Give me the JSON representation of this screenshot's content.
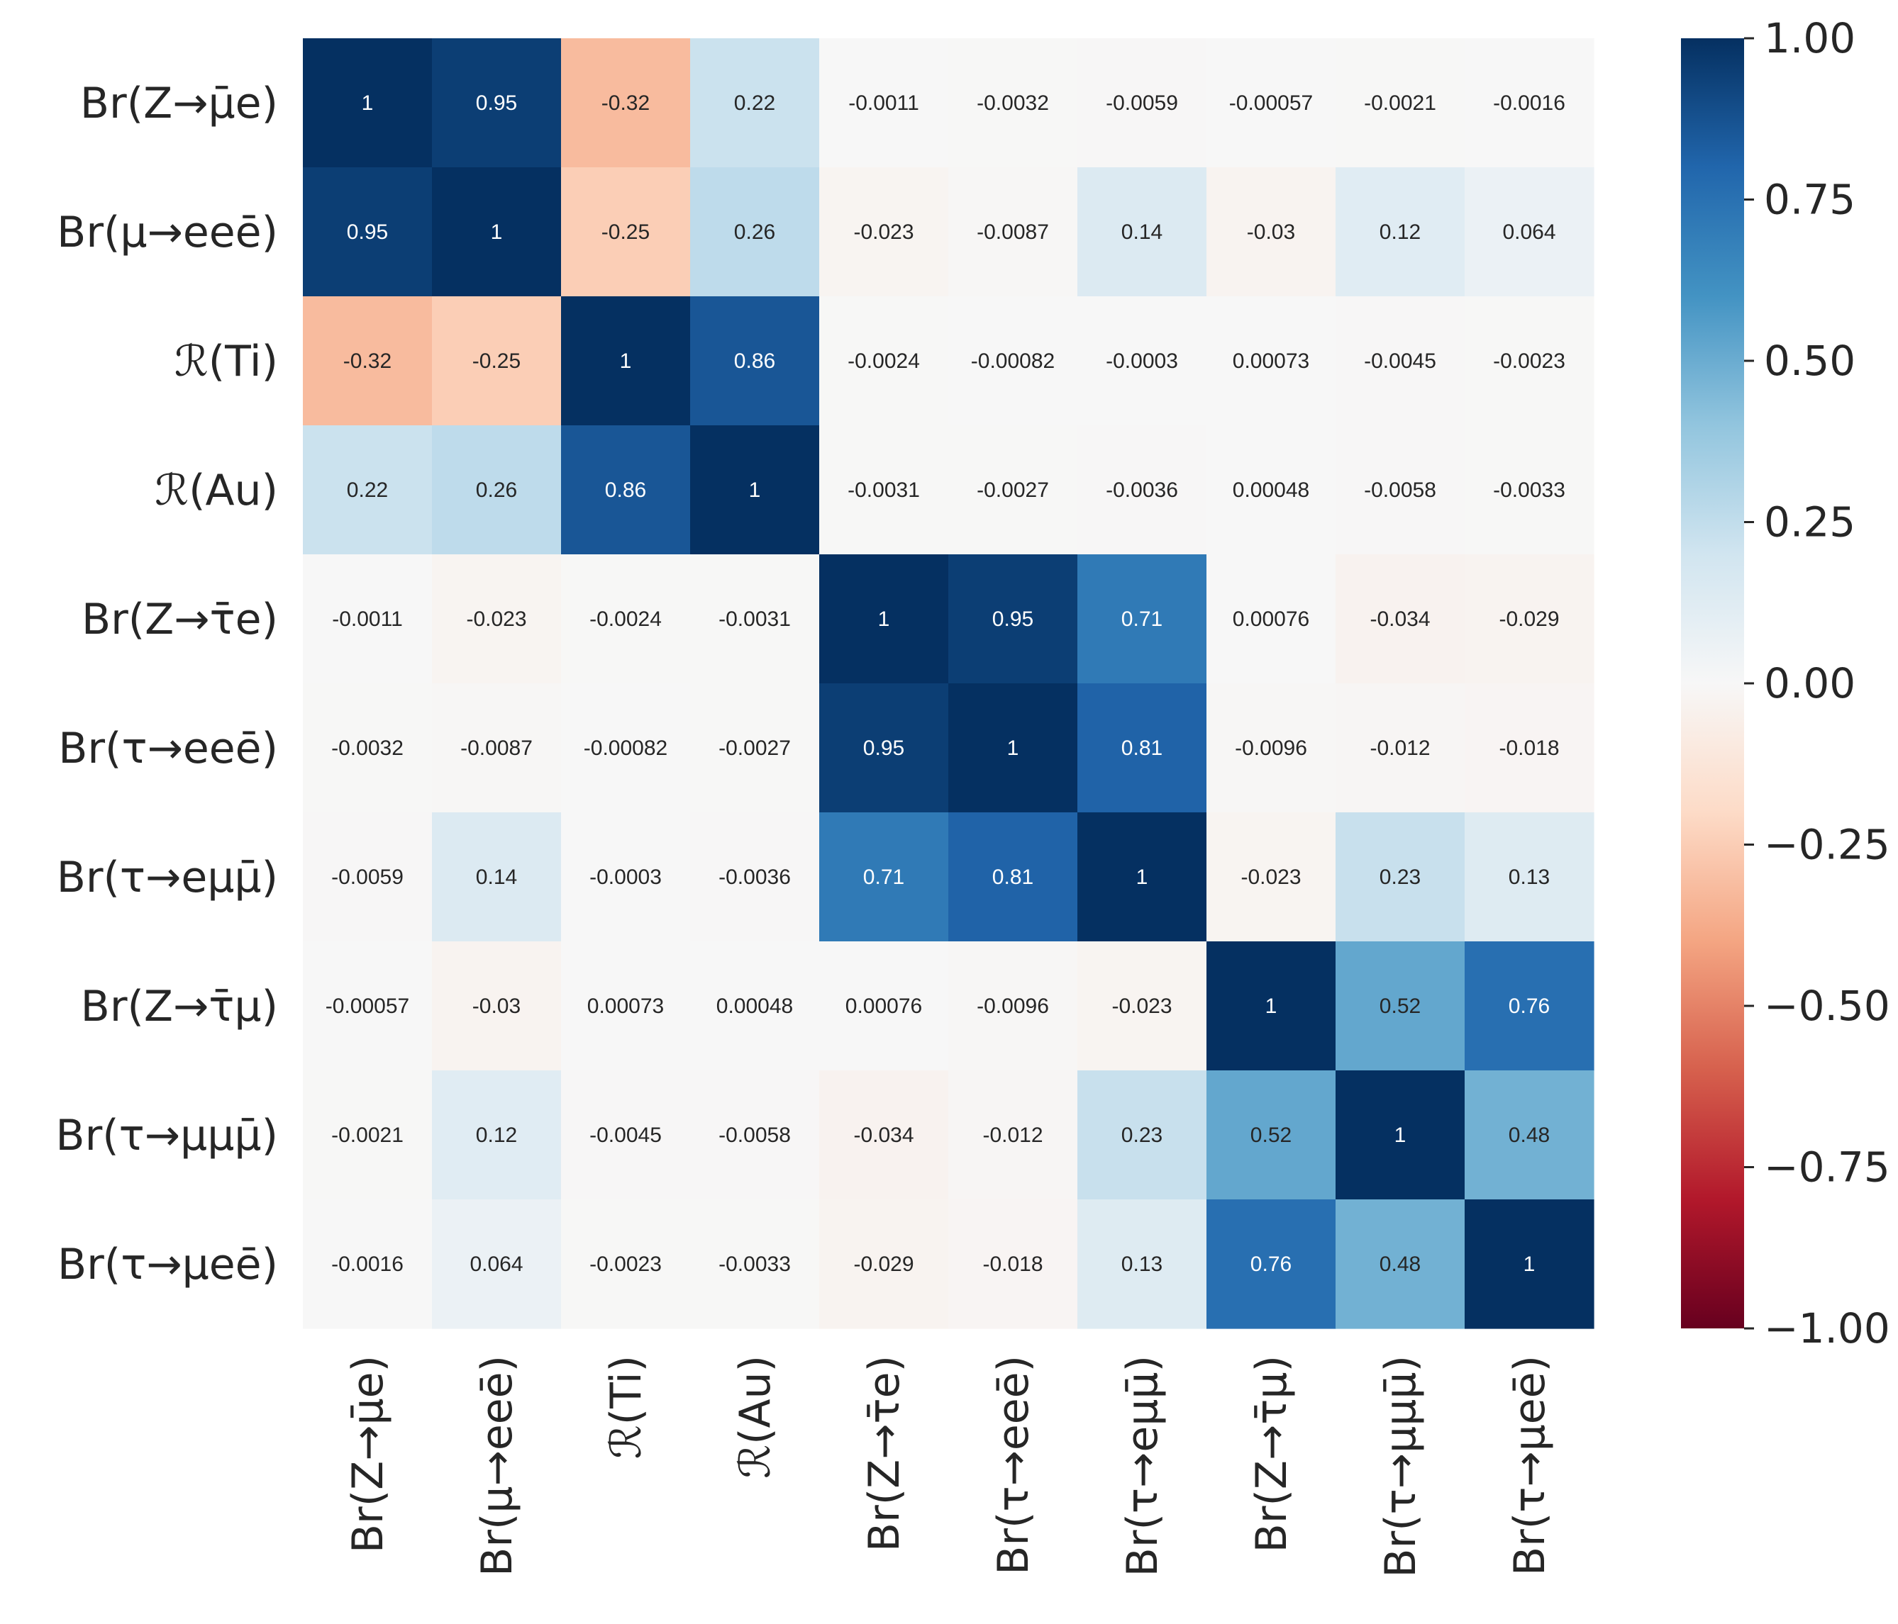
{
  "chart_data": {
    "type": "heatmap",
    "title": "",
    "xlabel": "",
    "ylabel": "",
    "row_labels": [
      "Br(Z→μ̄e)",
      "Br(μ→eeē)",
      "ℛ(Ti)",
      "ℛ(Au)",
      "Br(Z→τ̄e)",
      "Br(τ→eeē)",
      "Br(τ→eμμ̄)",
      "Br(Z→τ̄μ)",
      "Br(τ→μμμ̄)",
      "Br(τ→μeē)"
    ],
    "col_labels": [
      "Br(Z→μ̄e)",
      "Br(μ→eeē)",
      "ℛ(Ti)",
      "ℛ(Au)",
      "Br(Z→τ̄e)",
      "Br(τ→eeē)",
      "Br(τ→eμμ̄)",
      "Br(Z→τ̄μ)",
      "Br(τ→μμμ̄)",
      "Br(τ→μeē)"
    ],
    "values": [
      [
        "1",
        "0.95",
        "-0.32",
        "0.22",
        "-0.0011",
        "-0.0032",
        "-0.0059",
        "-0.00057",
        "-0.0021",
        "-0.0016"
      ],
      [
        "0.95",
        "1",
        "-0.25",
        "0.26",
        "-0.023",
        "-0.0087",
        "0.14",
        "-0.03",
        "0.12",
        "0.064"
      ],
      [
        "-0.32",
        "-0.25",
        "1",
        "0.86",
        "-0.0024",
        "-0.00082",
        "-0.0003",
        "0.00073",
        "-0.0045",
        "-0.0023"
      ],
      [
        "0.22",
        "0.26",
        "0.86",
        "1",
        "-0.0031",
        "-0.0027",
        "-0.0036",
        "0.00048",
        "-0.0058",
        "-0.0033"
      ],
      [
        "-0.0011",
        "-0.023",
        "-0.0024",
        "-0.0031",
        "1",
        "0.95",
        "0.71",
        "0.00076",
        "-0.034",
        "-0.029"
      ],
      [
        "-0.0032",
        "-0.0087",
        "-0.00082",
        "-0.0027",
        "0.95",
        "1",
        "0.81",
        "-0.0096",
        "-0.012",
        "-0.018"
      ],
      [
        "-0.0059",
        "0.14",
        "-0.0003",
        "-0.0036",
        "0.71",
        "0.81",
        "1",
        "-0.023",
        "0.23",
        "0.13"
      ],
      [
        "-0.00057",
        "-0.03",
        "0.00073",
        "0.00048",
        "0.00076",
        "-0.0096",
        "-0.023",
        "1",
        "0.52",
        "0.76"
      ],
      [
        "-0.0021",
        "0.12",
        "-0.0045",
        "-0.0058",
        "-0.034",
        "-0.012",
        "0.23",
        "0.52",
        "1",
        "0.48"
      ],
      [
        "-0.0016",
        "0.064",
        "-0.0023",
        "-0.0033",
        "-0.029",
        "-0.018",
        "0.13",
        "0.76",
        "0.48",
        "1"
      ]
    ],
    "colorbar": {
      "cmap": "RdBu",
      "range": [
        -1,
        1
      ],
      "ticks": [
        "1.00",
        "0.75",
        "0.50",
        "0.25",
        "0.00",
        "−0.25",
        "−0.50",
        "−0.75",
        "−1.00"
      ]
    }
  }
}
